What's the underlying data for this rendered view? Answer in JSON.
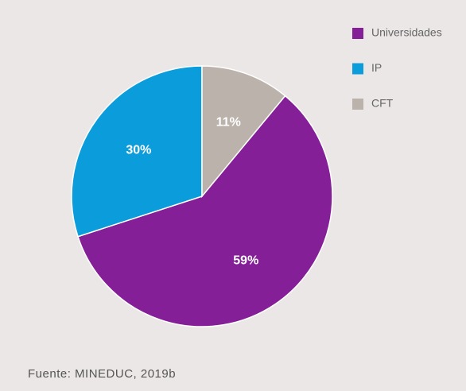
{
  "chart_data": {
    "type": "pie",
    "categories": [
      "Universidades",
      "IP",
      "CFT"
    ],
    "values": [
      59,
      30,
      11
    ],
    "value_labels": [
      "59%",
      "30%",
      "11%"
    ],
    "colors": [
      "#841f97",
      "#0b9ddb",
      "#bbb2ac"
    ],
    "legend": "top-right",
    "source": "Fuente: MINEDUC, 2019b"
  }
}
